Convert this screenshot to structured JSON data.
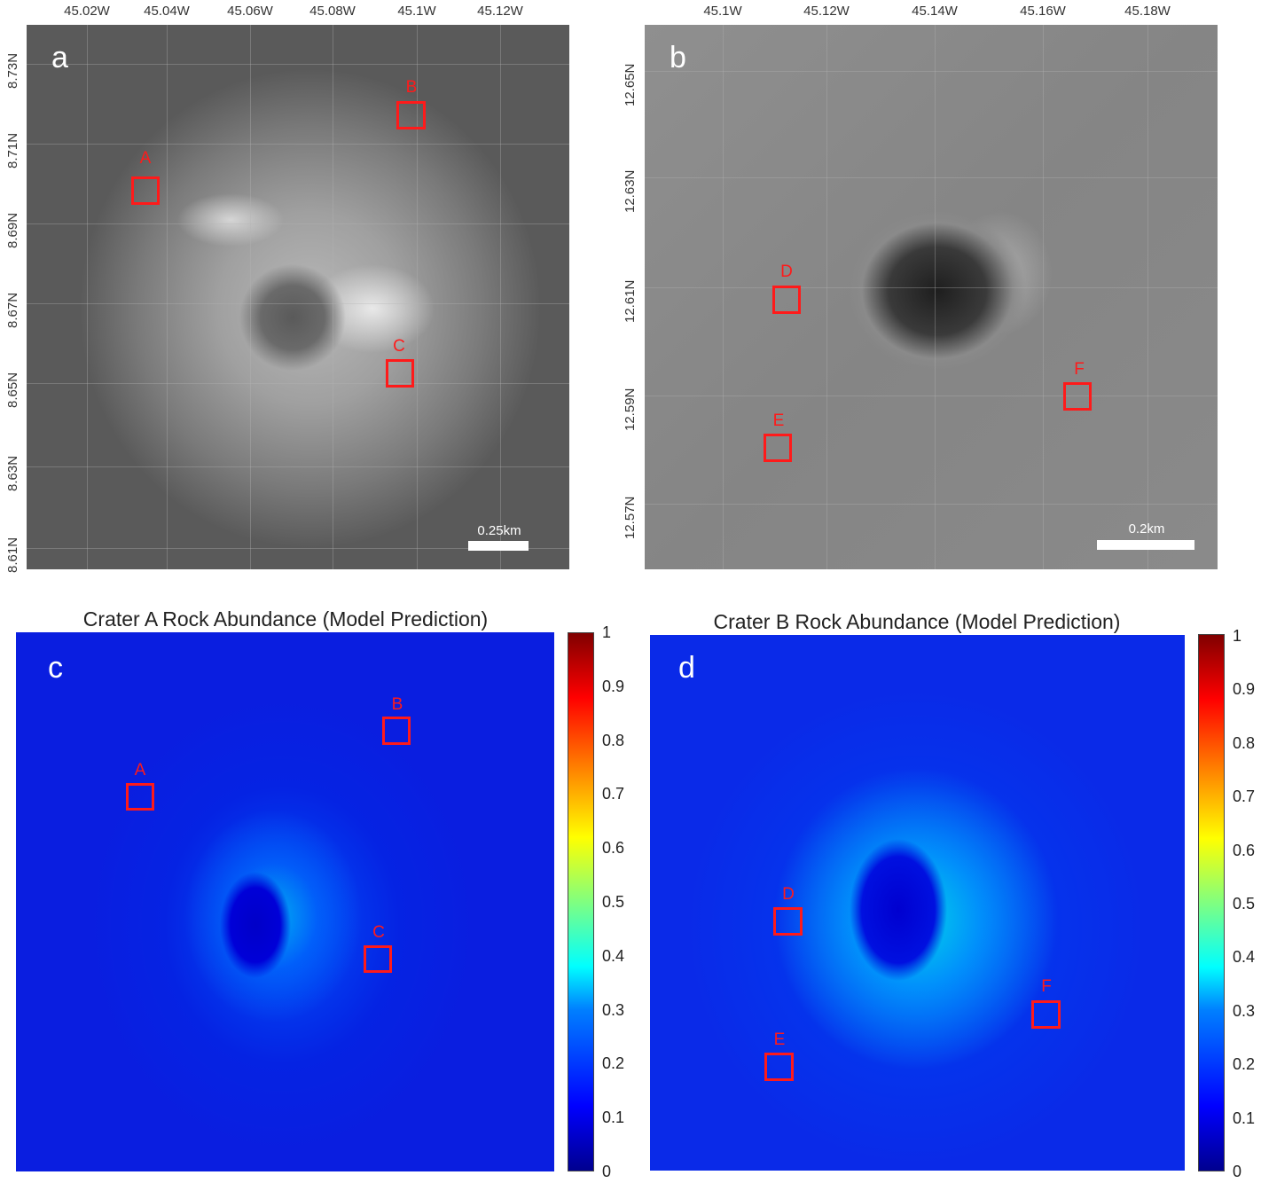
{
  "panel_a": {
    "letter": "a",
    "x_ticks": [
      "45.02W",
      "45.04W",
      "45.06W",
      "45.08W",
      "45.1W",
      "45.12W"
    ],
    "y_ticks": [
      "8.73N",
      "8.71N",
      "8.69N",
      "8.67N",
      "8.65N",
      "8.63N",
      "8.61N"
    ],
    "boxes": [
      "A",
      "B",
      "C"
    ],
    "scale_label": "0.25km"
  },
  "panel_b": {
    "letter": "b",
    "x_ticks": [
      "45.1W",
      "45.12W",
      "45.14W",
      "45.16W",
      "45.18W"
    ],
    "y_ticks": [
      "12.65N",
      "12.63N",
      "12.61N",
      "12.59N",
      "12.57N"
    ],
    "boxes": [
      "D",
      "E",
      "F"
    ],
    "scale_label": "0.2km"
  },
  "panel_c": {
    "letter": "c",
    "title": "Crater A Rock Abundance (Model Prediction)",
    "boxes": [
      "A",
      "B",
      "C"
    ]
  },
  "panel_d": {
    "letter": "d",
    "title": "Crater B Rock Abundance (Model Prediction)",
    "boxes": [
      "D",
      "E",
      "F"
    ]
  },
  "colorbar": {
    "ticks": [
      "1",
      "0.9",
      "0.8",
      "0.7",
      "0.6",
      "0.5",
      "0.4",
      "0.3",
      "0.2",
      "0.1",
      "0"
    ],
    "colormap": "jet"
  }
}
